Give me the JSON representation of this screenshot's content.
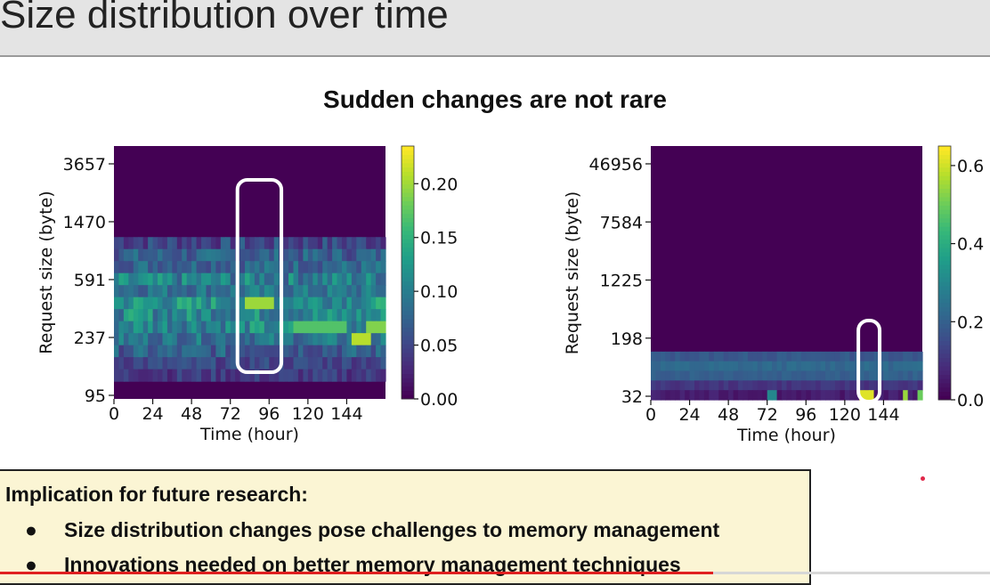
{
  "slide": {
    "title": "Size distribution over time",
    "subtitle": "Sudden changes are not rare"
  },
  "implication": {
    "heading": "Implication for future research:",
    "bullet_glyph": "●",
    "items": [
      "Size distribution changes pose challenges to memory management",
      "Innovations needed on better memory management techniques"
    ]
  },
  "video_progress": {
    "fraction": 0.72
  },
  "chart_data": [
    {
      "type": "heatmap",
      "xlabel": "Time (hour)",
      "ylabel": "Request size (byte)",
      "x_ticks": [
        "0",
        "24",
        "48",
        "72",
        "96",
        "120",
        "144"
      ],
      "x_range": [
        0,
        168
      ],
      "y_ticks": [
        "95",
        "237",
        "591",
        "1470",
        "3657"
      ],
      "y_scale": "log",
      "colorbar": {
        "ticks": [
          "0.00",
          "0.05",
          "0.10",
          "0.15",
          "0.20"
        ],
        "range": [
          0,
          0.235
        ]
      },
      "colormap": "viridis",
      "highlight_hours": [
        72,
        108
      ],
      "rows": [
        {
          "base": 0.05,
          "noise": 0.03
        },
        {
          "base": 0.07,
          "noise": 0.03
        },
        {
          "base": 0.08,
          "noise": 0.03
        },
        {
          "base": 0.1,
          "noise": 0.04
        },
        {
          "base": 0.09,
          "noise": 0.03
        },
        {
          "base": 0.12,
          "noise": 0.04
        },
        {
          "base": 0.11,
          "noise": 0.04
        },
        {
          "base": 0.11,
          "noise": 0.04
        },
        {
          "base": 0.09,
          "noise": 0.03
        },
        {
          "base": 0.07,
          "noise": 0.03
        },
        {
          "base": 0.05,
          "noise": 0.02
        },
        {
          "base": 0.04,
          "noise": 0.02
        }
      ],
      "hotspots": [
        {
          "row": 5,
          "hour_from": 82,
          "hour_to": 98,
          "value": 0.2
        },
        {
          "row": 7,
          "hour_from": 110,
          "hour_to": 144,
          "value": 0.17
        },
        {
          "row": 7,
          "hour_from": 156,
          "hour_to": 168,
          "value": 0.19
        },
        {
          "row": 8,
          "hour_from": 146,
          "hour_to": 158,
          "value": 0.21
        }
      ]
    },
    {
      "type": "heatmap",
      "xlabel": "Time (hour)",
      "ylabel": "Request size (byte)",
      "x_ticks": [
        "0",
        "24",
        "48",
        "72",
        "96",
        "120",
        "144"
      ],
      "x_range": [
        0,
        168
      ],
      "y_ticks": [
        "32",
        "198",
        "1225",
        "7584",
        "46956"
      ],
      "y_scale": "log",
      "colorbar": {
        "ticks": [
          "0.0",
          "0.2",
          "0.4",
          "0.6"
        ],
        "range": [
          0,
          0.65
        ]
      },
      "colormap": "viridis",
      "highlight_hours": [
        124,
        146
      ],
      "rows": [
        {
          "base": 0.18,
          "noise": 0.02
        },
        {
          "base": 0.22,
          "noise": 0.02
        },
        {
          "base": 0.2,
          "noise": 0.02
        },
        {
          "base": 0.1,
          "noise": 0.02
        },
        {
          "base": 0.05,
          "noise": 0.02
        }
      ],
      "hotspots": [
        {
          "row": 4,
          "hour_from": 130,
          "hour_to": 137,
          "value": 0.62
        },
        {
          "row": 4,
          "hour_from": 72,
          "hour_to": 78,
          "value": 0.3
        },
        {
          "row": 4,
          "hour_from": 155,
          "hour_to": 158,
          "value": 0.55
        },
        {
          "row": 4,
          "hour_from": 165,
          "hour_to": 167,
          "value": 0.5
        }
      ]
    }
  ]
}
